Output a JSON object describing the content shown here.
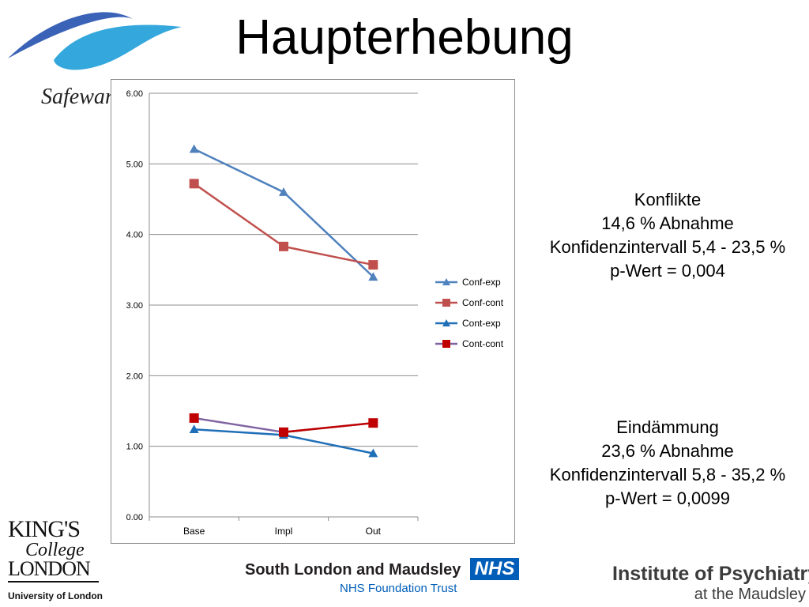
{
  "page": {
    "title": "Haupterhebung"
  },
  "logos": {
    "safewards": "Safewards",
    "kings_college_line1": "KING'S",
    "kings_college_line2": "College",
    "kings_college_line3": "LONDON",
    "kings_college_line4": "University of London",
    "slam_name": "South London and Maudsley",
    "slam_nhs": "NHS",
    "slam_trust": "NHS Foundation Trust",
    "iop_line1": "Institute of Psychiatry",
    "iop_line2": "at the Maudsley"
  },
  "stats": {
    "conflicts": {
      "heading": "Konflikte",
      "reduction": "14,6 % Abnahme",
      "ci": "Konfidenzintervall 5,4 - 23,5 %",
      "p": "p-Wert = 0,004"
    },
    "containment": {
      "heading": "Eindämmung",
      "reduction": "23,6 % Abnahme",
      "ci": "Konfidenzintervall 5,8 - 35,2 %",
      "p": "p-Wert = 0,0099"
    }
  },
  "chart_data": {
    "type": "line",
    "title": "",
    "xlabel": "",
    "ylabel": "",
    "categories": [
      "Base",
      "Impl",
      "Out"
    ],
    "ylim": [
      0,
      6
    ],
    "yticks": [
      "0.00",
      "1.00",
      "2.00",
      "3.00",
      "4.00",
      "5.00",
      "6.00"
    ],
    "grid": "horizontal",
    "legend_position": "right",
    "series": [
      {
        "name": "Conf-exp",
        "values": [
          5.21,
          4.6,
          3.4
        ],
        "color": "#4f81bd",
        "marker": "triangle"
      },
      {
        "name": "Conf-cont",
        "values": [
          4.72,
          3.83,
          3.57
        ],
        "color": "#c0504d",
        "marker": "square"
      },
      {
        "name": "Cont-exp",
        "values": [
          1.24,
          1.16,
          0.9
        ],
        "color": "#1f6fb8",
        "marker": "triangle"
      },
      {
        "name": "Cont-cont",
        "values": [
          1.4,
          1.2,
          1.33
        ],
        "color": "#8064a2",
        "marker": "square",
        "color2": "#c00000"
      }
    ]
  }
}
